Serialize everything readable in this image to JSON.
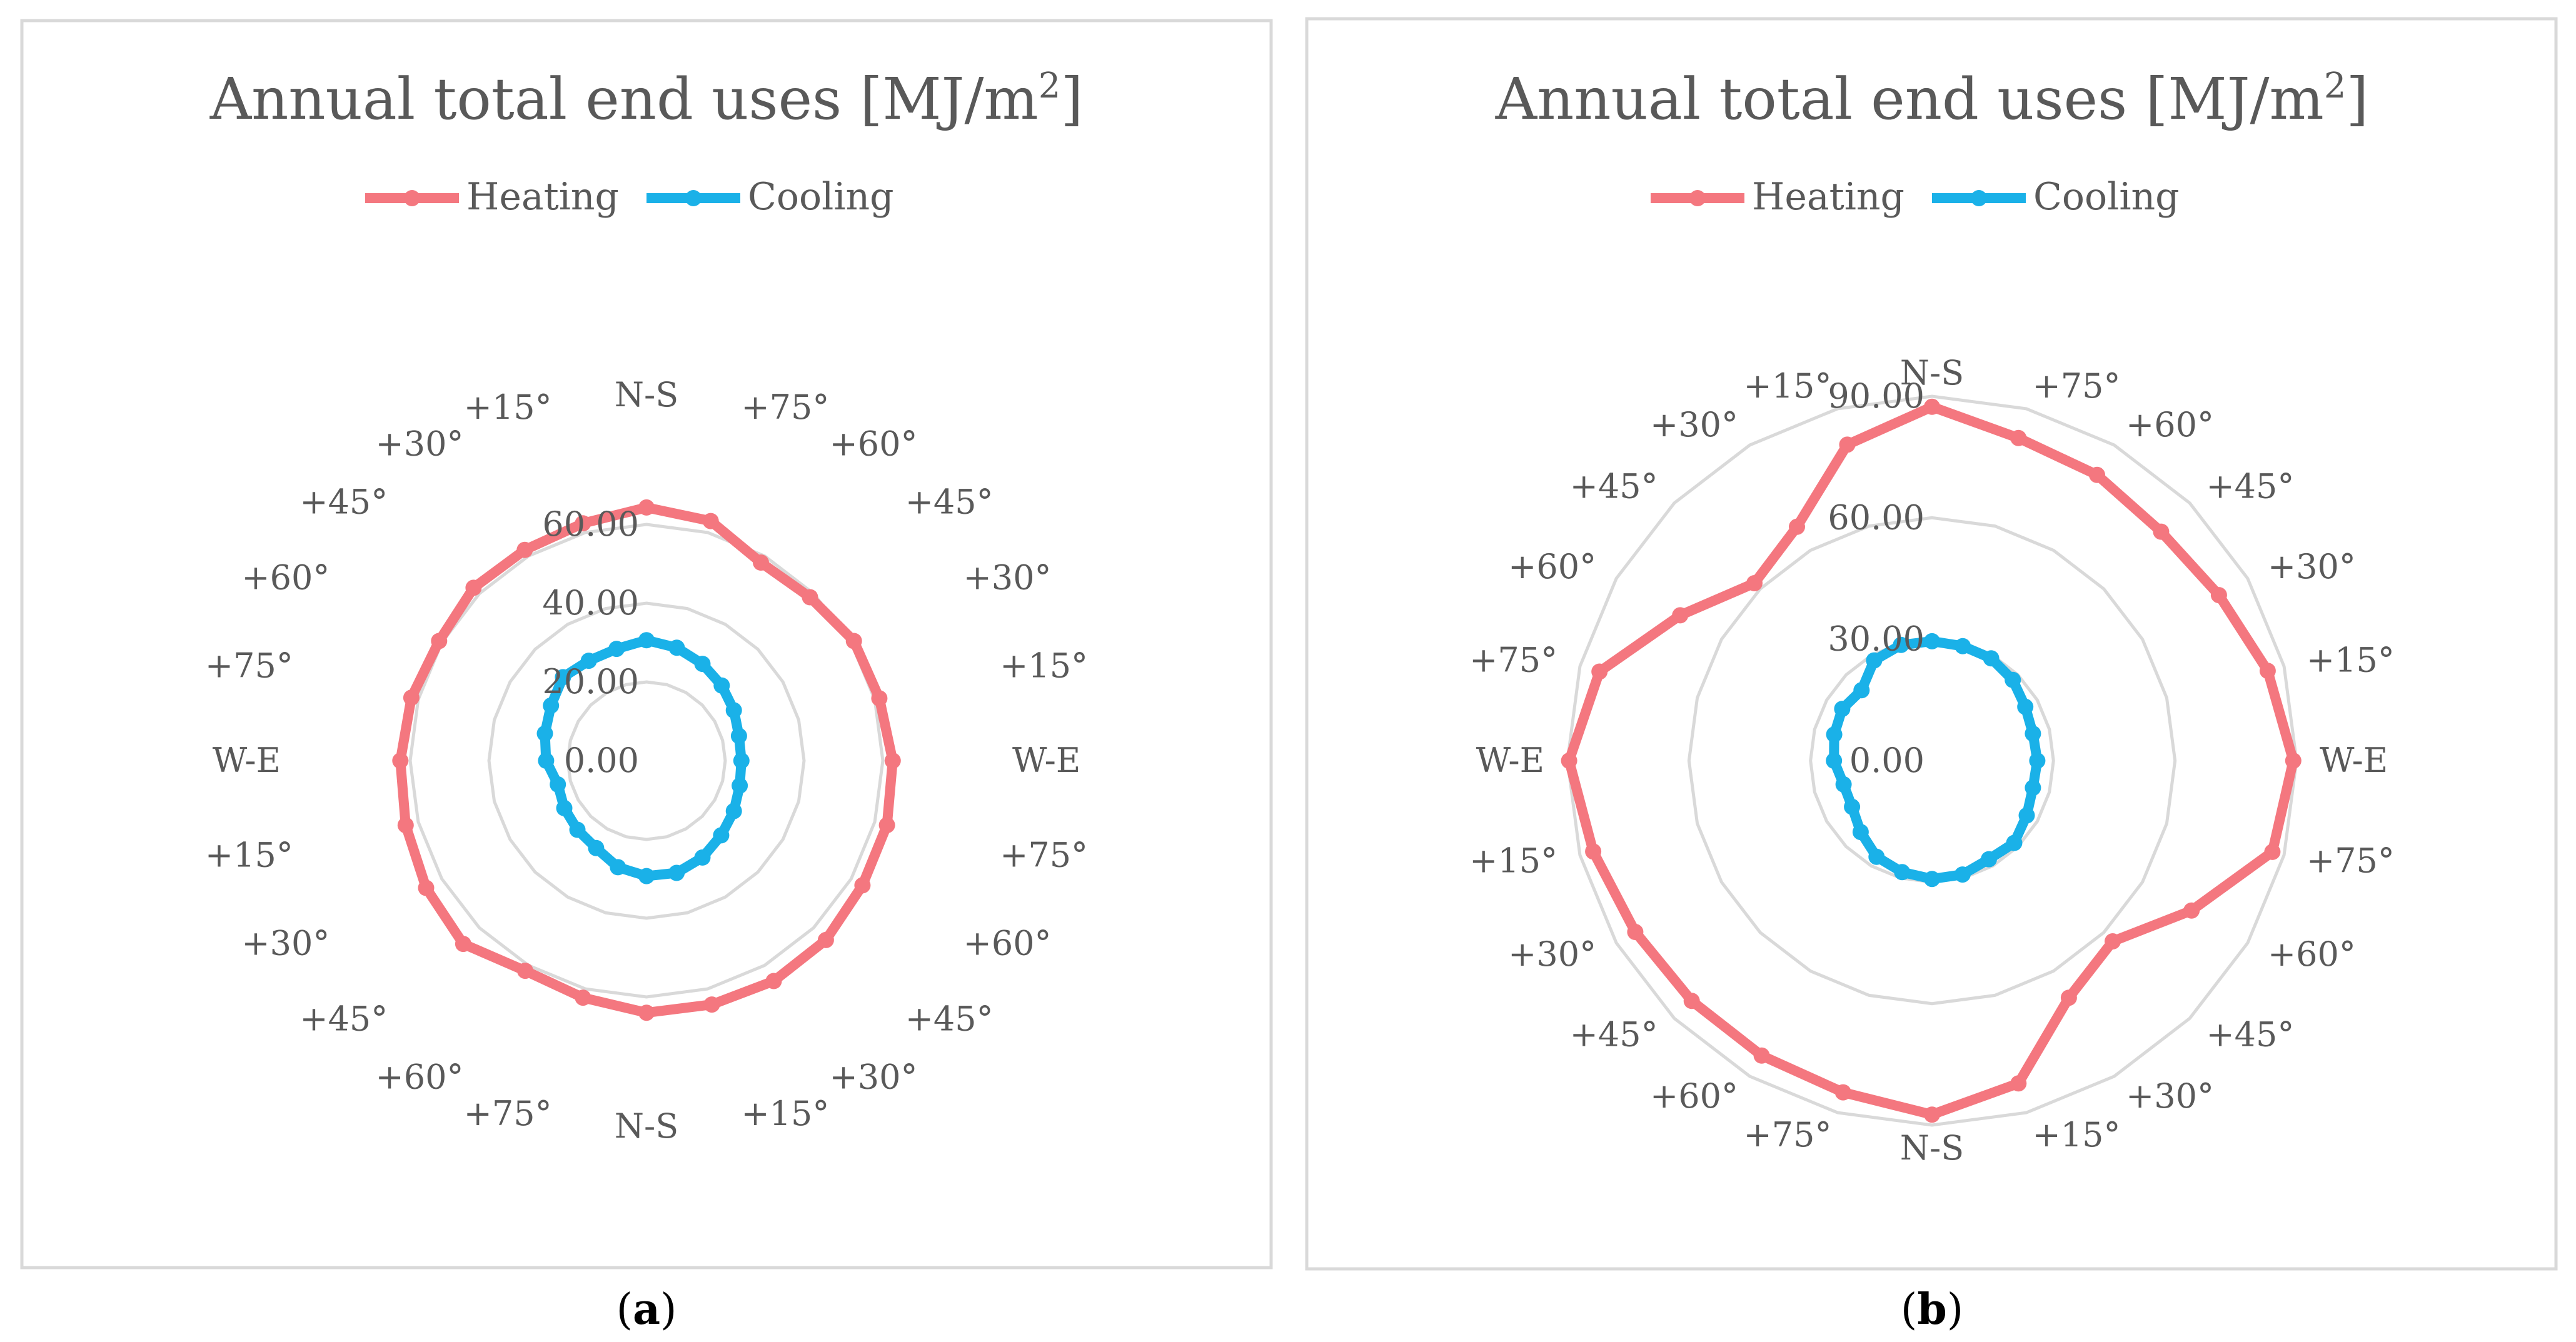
{
  "chart_data": [
    {
      "type": "radar",
      "panel": "a",
      "title": "Annual total end uses [MJ/m",
      "title_sup": "2",
      "title_end": "]",
      "caption_open": "(",
      "caption_label": "a",
      "caption_close": ")",
      "categories": [
        "N-S",
        "+75°",
        "+60°",
        "+45°",
        "+30°",
        "+15°",
        "W-E",
        "+75°",
        "+60°",
        "+45°",
        "+30°",
        "+15°",
        "N-S",
        "+75°",
        "+60°",
        "+45°",
        "+30°",
        "+15°",
        "W-E",
        "+75°",
        "+60°",
        "+45°",
        "+30°",
        "+15°"
      ],
      "r_ticks": [
        0,
        20,
        40,
        60
      ],
      "r_tick_labels": [
        "0.00",
        "20.00",
        "40.00",
        "60.00"
      ],
      "r_max": 60,
      "legend_placement": "top",
      "series": [
        {
          "name": "Heating",
          "color": "#f4777f",
          "values": [
            64.3,
            63.0,
            58.1,
            58.7,
            60.8,
            61.2,
            62.5,
            63.2,
            63.3,
            64.4,
            64.6,
            64.1,
            64.0,
            62.3,
            61.6,
            65.8,
            64.6,
            63.3,
            62.5,
            61.8,
            60.8,
            62.1,
            61.8,
            62.4
          ]
        },
        {
          "name": "Cooling",
          "color": "#1ab1e8",
          "values": [
            30.6,
            29.7,
            28.4,
            27.0,
            25.6,
            24.3,
            24.1,
            24.5,
            25.6,
            26.8,
            28.4,
            29.5,
            29.3,
            28.0,
            25.6,
            24.8,
            24.1,
            23.3,
            25.5,
            26.7,
            28.0,
            30.0,
            29.3,
            29.4
          ]
        }
      ]
    },
    {
      "type": "radar",
      "panel": "b",
      "title": "Annual total end uses [MJ/m",
      "title_sup": "2",
      "title_end": "]",
      "caption_open": "(",
      "caption_label": "b",
      "caption_close": ")",
      "categories": [
        "N-S",
        "+75°",
        "+60°",
        "+45°",
        "+30°",
        "+15°",
        "W-E",
        "+75°",
        "+60°",
        "+45°",
        "+30°",
        "+15°",
        "N-S",
        "+75°",
        "+60°",
        "+45°",
        "+30°",
        "+15°",
        "W-E",
        "+75°",
        "+60°",
        "+45°",
        "+30°",
        "+15°"
      ],
      "r_ticks": [
        0,
        30,
        60,
        90
      ],
      "r_tick_labels": [
        "0.00",
        "30.00",
        "60.00",
        "90.00"
      ],
      "r_max": 90,
      "legend_placement": "top",
      "series": [
        {
          "name": "Heating",
          "color": "#f4777f",
          "values": [
            87.4,
            82.5,
            81.5,
            80.0,
            81.8,
            85.8,
            89.2,
            87.0,
            74.0,
            63.1,
            67.6,
            82.5,
            87.4,
            84.8,
            84.1,
            83.9,
            84.6,
            86.6,
            89.6,
            85.0,
            71.8,
            62.0,
            66.7,
            80.8
          ]
        },
        {
          "name": "Cooling",
          "color": "#1ab1e8",
          "values": [
            29.5,
            29.3,
            29.2,
            28.2,
            26.6,
            25.8,
            26.0,
            25.8,
            27.0,
            28.7,
            28.1,
            29.1,
            29.2,
            28.5,
            27.4,
            24.9,
            22.8,
            22.6,
            24.2,
            25.0,
            25.6,
            24.6,
            28.6,
            29.6
          ]
        }
      ]
    }
  ]
}
